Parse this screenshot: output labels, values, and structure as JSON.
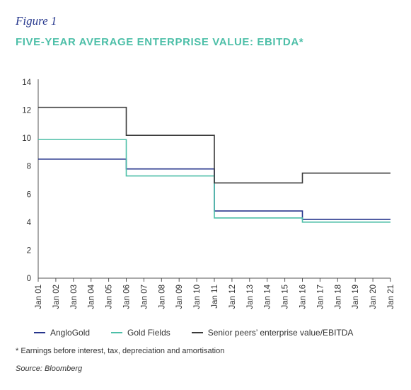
{
  "figure_label": "Figure 1",
  "title": "FIVE-YEAR AVERAGE ENTERPRISE VALUE: EBITDA*",
  "footnote": "* Earnings before interest, tax, depreciation and amortisation",
  "source": "Source: Bloomberg",
  "colors": {
    "label": "#2a3b8f",
    "title": "#4dbfa8",
    "anglogold": "#26358c",
    "goldfields": "#4dbfa8",
    "peers": "#3a3a3a",
    "axis": "#555555"
  },
  "chart_data": {
    "type": "line",
    "title": "",
    "xlabel": "",
    "ylabel": "",
    "ylim": [
      0,
      14
    ],
    "xlim": [
      "Jan 01",
      "Jan 21"
    ],
    "y_ticks": [
      "0",
      "2",
      "4",
      "6",
      "8",
      "10",
      "12",
      "14"
    ],
    "x_ticks": [
      "Jan 01",
      "Jan 02",
      "Jan 03",
      "Jan 04",
      "Jan 05",
      "Jan 06",
      "Jan 07",
      "Jan 08",
      "Jan 09",
      "Jan 10",
      "Jan 11",
      "Jan 12",
      "Jan 13",
      "Jan 14",
      "Jan 15",
      "Jan 16",
      "Jan 17",
      "Jan 18",
      "Jan 19",
      "Jan 20",
      "Jan 21"
    ],
    "grid": false,
    "legend_position": "bottom",
    "series": [
      {
        "name": "AngloGold",
        "x": [
          "Jan 01",
          "Jan 06",
          "Jan 06",
          "Jan 11",
          "Jan 11",
          "Jan 16",
          "Jan 16",
          "Jan 21"
        ],
        "y": [
          8.5,
          8.5,
          7.8,
          7.8,
          4.8,
          4.8,
          4.2,
          4.2
        ]
      },
      {
        "name": "Gold Fields",
        "x": [
          "Jan 01",
          "Jan 06",
          "Jan 06",
          "Jan 11",
          "Jan 11",
          "Jan 16",
          "Jan 16",
          "Jan 21"
        ],
        "y": [
          9.9,
          9.9,
          7.3,
          7.3,
          4.3,
          4.3,
          4.0,
          4.0
        ]
      },
      {
        "name": "Senior peers’ enterprise value/EBITDA",
        "x": [
          "Jan 01",
          "Jan 06",
          "Jan 06",
          "Jan 11",
          "Jan 11",
          "Jan 16",
          "Jan 16",
          "Jan 21"
        ],
        "y": [
          12.2,
          12.2,
          10.2,
          10.2,
          6.8,
          6.8,
          7.5,
          7.5
        ]
      }
    ]
  }
}
